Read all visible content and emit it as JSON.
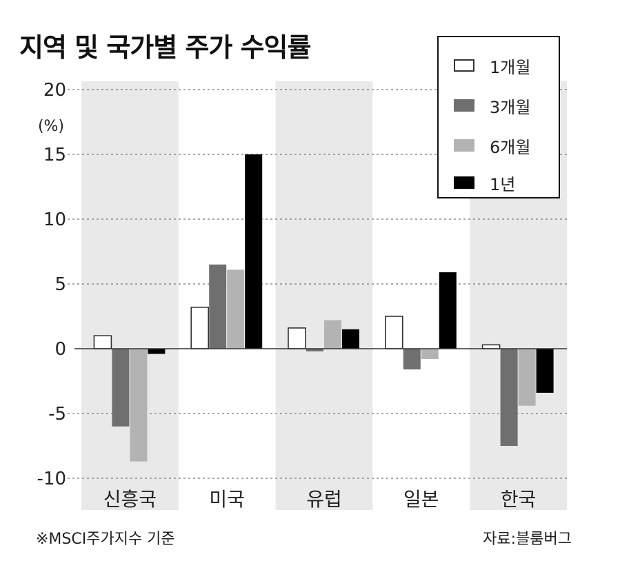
{
  "title": "지역 및 국가별 주가 수익률",
  "unit": "(%)",
  "note": "※MSCI주가지수 기준",
  "source": "자료:블룸버그",
  "chart_data": {
    "type": "bar",
    "categories": [
      "신흥국",
      "미국",
      "유럽",
      "일본",
      "한국"
    ],
    "series": [
      {
        "name": "1개월",
        "values": [
          1.0,
          3.2,
          1.6,
          2.5,
          0.3
        ],
        "color": "#ffffff"
      },
      {
        "name": "3개월",
        "values": [
          -6.0,
          6.5,
          -0.2,
          -1.6,
          -7.5
        ],
        "color": "#6f6f6f"
      },
      {
        "name": "6개월",
        "values": [
          -8.7,
          6.1,
          2.2,
          -0.8,
          -4.4
        ],
        "color": "#b3b3b3"
      },
      {
        "name": "1년",
        "values": [
          -0.4,
          15.0,
          1.5,
          5.9,
          -3.4
        ],
        "color": "#000000"
      }
    ],
    "y_ticks": [
      20,
      15,
      10,
      5,
      0,
      -5,
      -10
    ],
    "ylim": [
      -10,
      20
    ],
    "legend_position": "top-right",
    "grid": true
  }
}
